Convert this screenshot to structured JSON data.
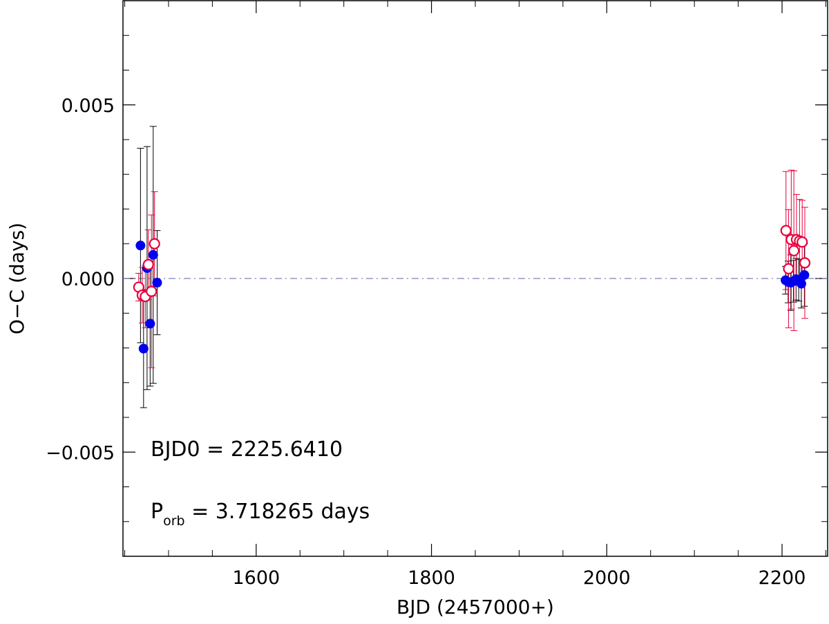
{
  "chart_data": {
    "type": "scatter",
    "xlabel": "BJD (2457000+)",
    "ylabel": "O−C (days)",
    "xlim": [
      1448,
      2252
    ],
    "ylim": [
      -0.008,
      0.008
    ],
    "x_ticks": [
      1600,
      1800,
      2000,
      2200
    ],
    "x_tick_labels": [
      "1600",
      "1800",
      "2000",
      "2200"
    ],
    "y_ticks": [
      -0.005,
      0.0,
      0.005
    ],
    "y_tick_labels": [
      "−0.005",
      "0.000",
      "0.005"
    ],
    "grid": false,
    "reference_line": {
      "y": 0.0,
      "style": "dash-dot"
    },
    "annotations": {
      "epoch_label": "BJD0 = 2225.6410",
      "period_symbol": "P",
      "period_subscript": "orb",
      "period_value": " = 3.718265 days"
    },
    "colors": {
      "filled_series": "#0000ee",
      "open_series": "#e8003c",
      "filled_errorbar": "#000000",
      "open_errorbar": "#e8003c",
      "reference_line": "#7f7fbf"
    },
    "series": [
      {
        "marker": "filled-circle",
        "points": [
          {
            "x": 1468.0,
            "y": 0.00095,
            "err": 0.0028
          },
          {
            "x": 1471.5,
            "y": -0.00202,
            "err": 0.0017
          },
          {
            "x": 1475.5,
            "y": 0.0003,
            "err": 0.0035
          },
          {
            "x": 1479.0,
            "y": -0.0013,
            "err": 0.0018
          },
          {
            "x": 1482.5,
            "y": 0.00068,
            "err": 0.0037
          },
          {
            "x": 1487.0,
            "y": -0.00012,
            "err": 0.0015
          },
          {
            "x": 2204.0,
            "y": -5e-05,
            "err": 0.0004
          },
          {
            "x": 2207.0,
            "y": -0.0001,
            "err": 0.0006
          },
          {
            "x": 2210.0,
            "y": -0.00012,
            "err": 0.0008
          },
          {
            "x": 2213.0,
            "y": -8e-05,
            "err": 0.0006
          },
          {
            "x": 2216.0,
            "y": -2e-05,
            "err": 0.0006
          },
          {
            "x": 2219.0,
            "y": -5e-05,
            "err": 0.0006
          },
          {
            "x": 2222.0,
            "y": -0.00015,
            "err": 0.0007
          },
          {
            "x": 2225.5,
            "y": 0.0001,
            "err": 0.0009
          }
        ]
      },
      {
        "marker": "open-circle",
        "points": [
          {
            "x": 1466.0,
            "y": -0.00025,
            "err": 0.0004
          },
          {
            "x": 1470.0,
            "y": -0.00048,
            "err": 0.0008
          },
          {
            "x": 1473.5,
            "y": -0.00052,
            "err": 0.0009
          },
          {
            "x": 1477.0,
            "y": 0.0004,
            "err": 0.001
          },
          {
            "x": 1480.5,
            "y": -0.00037,
            "err": 0.0022
          },
          {
            "x": 1484.0,
            "y": 0.001,
            "err": 0.0015
          },
          {
            "x": 2204.5,
            "y": 0.00138,
            "err": 0.0017
          },
          {
            "x": 2207.5,
            "y": 0.00028,
            "err": 0.0017
          },
          {
            "x": 2210.5,
            "y": 0.00112,
            "err": 0.002
          },
          {
            "x": 2213.5,
            "y": 0.0008,
            "err": 0.0023
          },
          {
            "x": 2216.5,
            "y": 0.00112,
            "err": 0.0013
          },
          {
            "x": 2220.0,
            "y": 0.00108,
            "err": 0.0012
          },
          {
            "x": 2223.0,
            "y": 0.00105,
            "err": 0.0012
          },
          {
            "x": 2226.0,
            "y": 0.00045,
            "err": 0.0016
          }
        ]
      }
    ]
  }
}
